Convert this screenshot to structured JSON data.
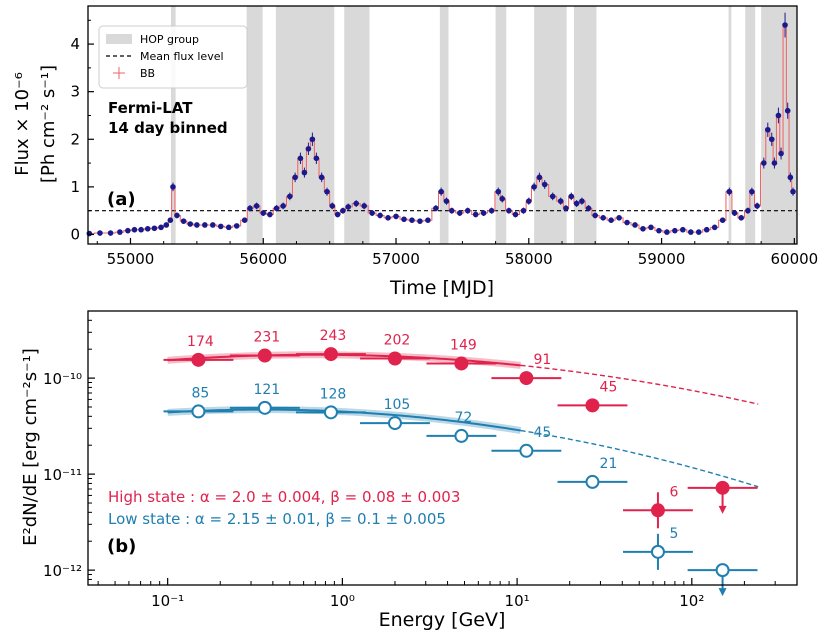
{
  "chart_data": [
    {
      "panel_label": "(a)",
      "type": "line",
      "xlabel": "Time [MJD]",
      "ylabel_line1": "Flux × 10⁻⁶",
      "ylabel_line2": "[Ph cm⁻² s⁻¹]",
      "annotation_line1": "Fermi-LAT",
      "annotation_line2": "14 day binned",
      "xlim": [
        54680,
        60020
      ],
      "ylim": [
        -0.2,
        4.8
      ],
      "xticks": [
        55000,
        56000,
        57000,
        58000,
        59000,
        60000
      ],
      "xtick_labels": [
        "55000",
        "56000",
        "57000",
        "58000",
        "59000",
        "60000"
      ],
      "yticks": [
        0,
        1,
        2,
        3,
        4
      ],
      "ytick_labels": [
        "0",
        "1",
        "2",
        "3",
        "4"
      ],
      "mean_flux": 0.5,
      "legend": {
        "position": "top-left",
        "hop": "HOP group",
        "mean": "Mean flux level",
        "bb": "BB"
      },
      "hop_groups": [
        [
          55305,
          55340
        ],
        [
          55875,
          55995
        ],
        [
          56095,
          56535
        ],
        [
          56610,
          56800
        ],
        [
          57330,
          57395
        ],
        [
          57750,
          57830
        ],
        [
          58040,
          58285
        ],
        [
          58340,
          58510
        ],
        [
          59505,
          59525
        ],
        [
          59630,
          59705
        ],
        [
          59750,
          60020
        ]
      ],
      "flux_points": [
        [
          54690,
          0.02
        ],
        [
          54770,
          0.03
        ],
        [
          54850,
          0.03
        ],
        [
          54920,
          0.05
        ],
        [
          54980,
          0.08
        ],
        [
          55030,
          0.1
        ],
        [
          55080,
          0.1
        ],
        [
          55130,
          0.12
        ],
        [
          55180,
          0.13
        ],
        [
          55230,
          0.15
        ],
        [
          55270,
          0.2
        ],
        [
          55300,
          0.3
        ],
        [
          55320,
          1.0
        ],
        [
          55350,
          0.4
        ],
        [
          55400,
          0.28
        ],
        [
          55450,
          0.22
        ],
        [
          55500,
          0.2
        ],
        [
          55560,
          0.2
        ],
        [
          55620,
          0.2
        ],
        [
          55680,
          0.17
        ],
        [
          55740,
          0.15
        ],
        [
          55800,
          0.18
        ],
        [
          55860,
          0.3
        ],
        [
          55900,
          0.55
        ],
        [
          55950,
          0.6
        ],
        [
          56000,
          0.45
        ],
        [
          56050,
          0.42
        ],
        [
          56100,
          0.55
        ],
        [
          56150,
          0.6
        ],
        [
          56200,
          0.8
        ],
        [
          56240,
          1.2
        ],
        [
          56280,
          1.6
        ],
        [
          56310,
          1.3
        ],
        [
          56340,
          1.8
        ],
        [
          56370,
          2.0
        ],
        [
          56400,
          1.6
        ],
        [
          56440,
          1.2
        ],
        [
          56480,
          0.9
        ],
        [
          56520,
          0.6
        ],
        [
          56560,
          0.42
        ],
        [
          56600,
          0.5
        ],
        [
          56640,
          0.58
        ],
        [
          56700,
          0.65
        ],
        [
          56760,
          0.6
        ],
        [
          56820,
          0.45
        ],
        [
          56880,
          0.4
        ],
        [
          56940,
          0.35
        ],
        [
          57000,
          0.38
        ],
        [
          57060,
          0.32
        ],
        [
          57120,
          0.3
        ],
        [
          57180,
          0.28
        ],
        [
          57240,
          0.3
        ],
        [
          57300,
          0.55
        ],
        [
          57340,
          0.9
        ],
        [
          57380,
          0.7
        ],
        [
          57420,
          0.5
        ],
        [
          57480,
          0.45
        ],
        [
          57540,
          0.5
        ],
        [
          57600,
          0.42
        ],
        [
          57660,
          0.45
        ],
        [
          57720,
          0.5
        ],
        [
          57770,
          0.9
        ],
        [
          57800,
          0.75
        ],
        [
          57850,
          0.5
        ],
        [
          57900,
          0.42
        ],
        [
          57960,
          0.5
        ],
        [
          58000,
          0.7
        ],
        [
          58040,
          1.0
        ],
        [
          58080,
          1.2
        ],
        [
          58120,
          1.05
        ],
        [
          58180,
          0.8
        ],
        [
          58240,
          0.7
        ],
        [
          58280,
          0.55
        ],
        [
          58320,
          0.8
        ],
        [
          58360,
          0.65
        ],
        [
          58400,
          0.7
        ],
        [
          58450,
          0.55
        ],
        [
          58500,
          0.4
        ],
        [
          58560,
          0.35
        ],
        [
          58620,
          0.3
        ],
        [
          58680,
          0.35
        ],
        [
          58740,
          0.25
        ],
        [
          58800,
          0.2
        ],
        [
          58860,
          0.12
        ],
        [
          58920,
          0.15
        ],
        [
          58980,
          0.08
        ],
        [
          59040,
          0.05
        ],
        [
          59100,
          0.08
        ],
        [
          59160,
          0.1
        ],
        [
          59220,
          0.05
        ],
        [
          59280,
          0.05
        ],
        [
          59340,
          0.1
        ],
        [
          59400,
          0.15
        ],
        [
          59460,
          0.3
        ],
        [
          59510,
          0.9
        ],
        [
          59550,
          0.45
        ],
        [
          59600,
          0.35
        ],
        [
          59650,
          0.5
        ],
        [
          59680,
          0.9
        ],
        [
          59720,
          0.6
        ],
        [
          59770,
          1.5
        ],
        [
          59800,
          2.2
        ],
        [
          59830,
          2.0
        ],
        [
          59850,
          1.5
        ],
        [
          59880,
          2.5
        ],
        [
          59900,
          1.7
        ],
        [
          59930,
          4.4
        ],
        [
          59950,
          2.6
        ],
        [
          59970,
          1.2
        ],
        [
          59990,
          0.9
        ]
      ]
    },
    {
      "panel_label": "(b)",
      "type": "scatter",
      "xlabel": "Energy [GeV]",
      "ylabel": "E²dN/dE [erg cm⁻²s⁻¹]",
      "log_x": true,
      "log_y": true,
      "xlim": [
        0.035,
        400
      ],
      "ylim": [
        7e-13,
        5e-10
      ],
      "xtick_labels": [
        "10⁻¹",
        "10⁰",
        "10¹",
        "10²"
      ],
      "ytick_labels": [
        "10⁻¹⁰",
        "10⁻¹¹",
        "10⁻¹²"
      ],
      "series": [
        {
          "name": "High state",
          "label": "High state : α = 2.0 ± 0.004, β =  0.08 ± 0.003",
          "color": "#e0234d",
          "filled": true,
          "points": [
            {
              "x": 0.15,
              "y": 1.55e-10,
              "count": "174",
              "ul": false
            },
            {
              "x": 0.36,
              "y": 1.72e-10,
              "count": "231",
              "ul": false
            },
            {
              "x": 0.86,
              "y": 1.78e-10,
              "count": "243",
              "ul": false
            },
            {
              "x": 2.0,
              "y": 1.6e-10,
              "count": "202",
              "ul": false
            },
            {
              "x": 4.8,
              "y": 1.42e-10,
              "count": "149",
              "ul": false
            },
            {
              "x": 11.3,
              "y": 1e-10,
              "count": "91",
              "ul": false
            },
            {
              "x": 27,
              "y": 5.2e-11,
              "count": "45",
              "ul": false
            },
            {
              "x": 64,
              "y": 4.2e-12,
              "count": "6",
              "ul": false
            },
            {
              "x": 150,
              "y": 7.2e-12,
              "count": "",
              "ul": true
            }
          ],
          "model": {
            "K": 1.75e-10,
            "E0": 0.7,
            "beta": 0.08
          }
        },
        {
          "name": "Low state",
          "label": "Low state : α = 2.15 ± 0.01, β =  0.1 ± 0.005",
          "color": "#1f7fb0",
          "filled": false,
          "points": [
            {
              "x": 0.15,
              "y": 4.5e-11,
              "count": "85",
              "ul": false
            },
            {
              "x": 0.36,
              "y": 4.9e-11,
              "count": "121",
              "ul": false
            },
            {
              "x": 0.86,
              "y": 4.4e-11,
              "count": "128",
              "ul": false
            },
            {
              "x": 2.0,
              "y": 3.4e-11,
              "count": "105",
              "ul": false
            },
            {
              "x": 4.8,
              "y": 2.5e-11,
              "count": "72",
              "ul": false
            },
            {
              "x": 11.3,
              "y": 1.75e-11,
              "count": "45",
              "ul": false
            },
            {
              "x": 27,
              "y": 8.3e-12,
              "count": "21",
              "ul": false
            },
            {
              "x": 64,
              "y": 1.55e-12,
              "count": "5",
              "ul": false
            },
            {
              "x": 150,
              "y": 1e-12,
              "count": "",
              "ul": true
            }
          ],
          "model": {
            "K": 4.7e-11,
            "E0": 0.35,
            "beta": 0.1
          }
        }
      ]
    }
  ]
}
